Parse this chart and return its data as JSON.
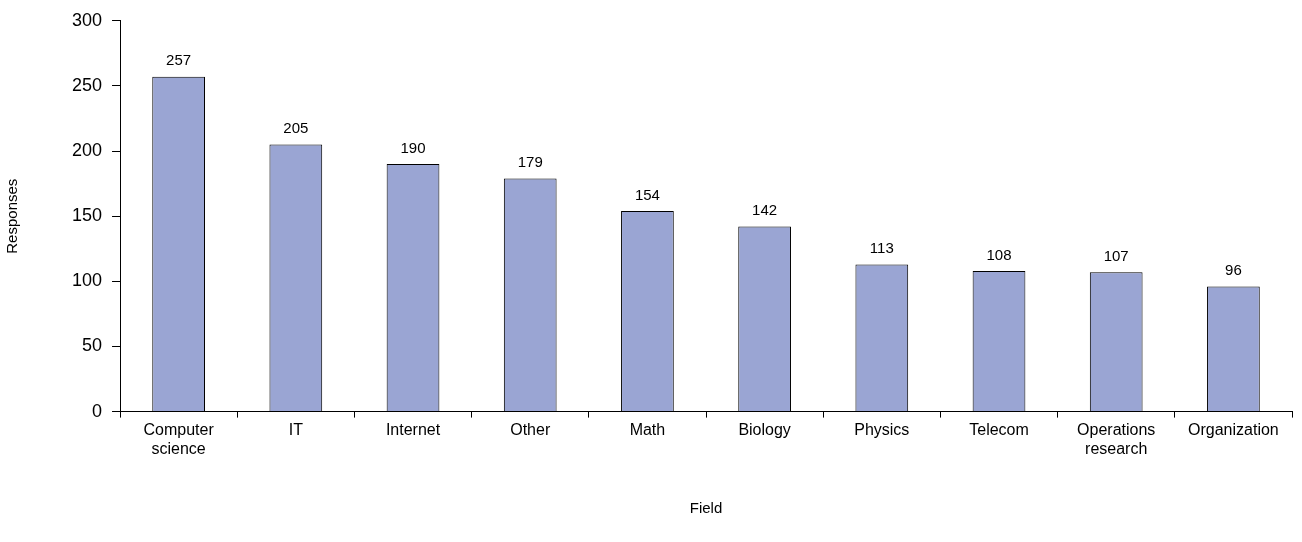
{
  "chart_data": {
    "type": "bar",
    "xlabel": "Field",
    "ylabel": "Responses",
    "categories": [
      "Computer science",
      "IT",
      "Internet",
      "Other",
      "Math",
      "Biology",
      "Physics",
      "Telecom",
      "Operations research",
      "Organization"
    ],
    "values": [
      257,
      205,
      190,
      179,
      154,
      142,
      113,
      108,
      107,
      96
    ],
    "color": "#9aa5d3",
    "ylim": [
      0,
      300
    ],
    "yticks": [
      0,
      50,
      100,
      150,
      200,
      250,
      300
    ],
    "grid": false,
    "legend": false,
    "data_labels": true
  }
}
